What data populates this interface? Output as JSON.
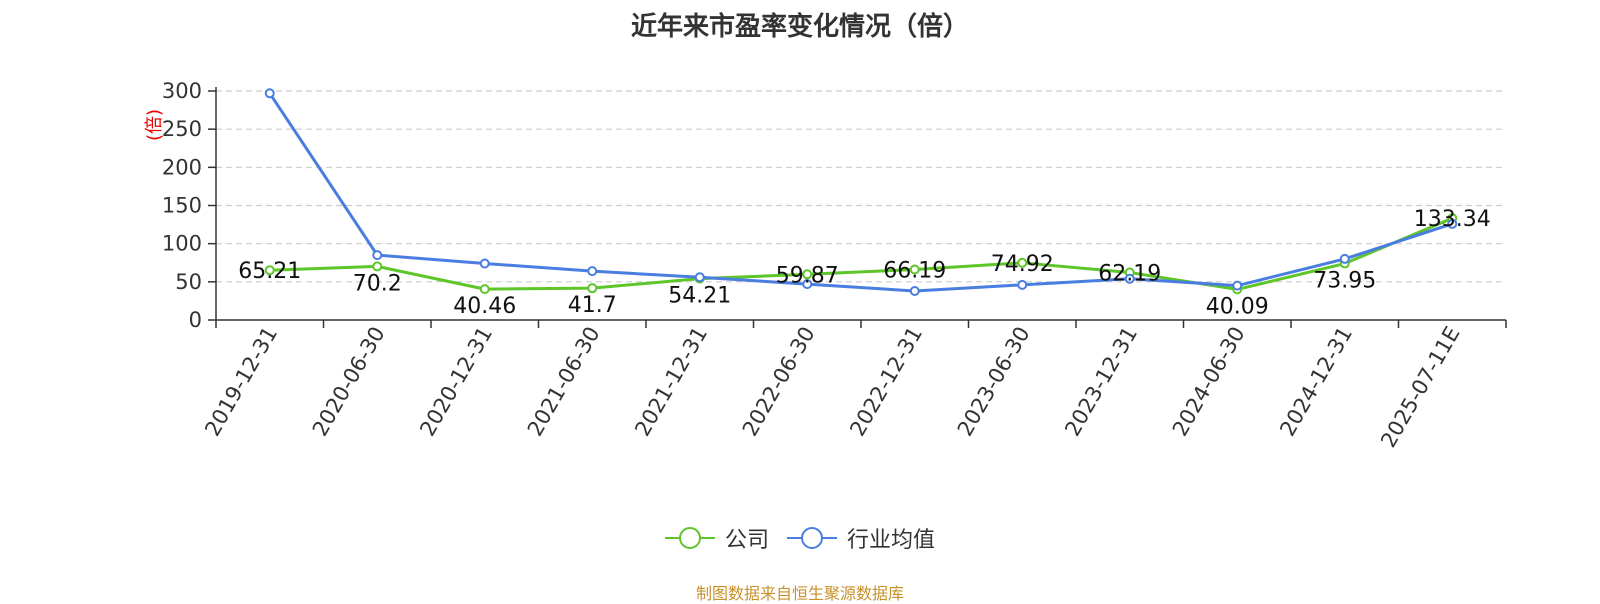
{
  "title": "近年来市盈率变化情况（倍）",
  "source": "制图数据来自恒生聚源数据库",
  "chart_data": {
    "type": "line",
    "title": "近年来市盈率变化情况（倍）",
    "ylabel": "(倍)",
    "xlabel": "",
    "ylim": [
      0,
      300
    ],
    "yticks": [
      0,
      50,
      100,
      150,
      200,
      250,
      300
    ],
    "grid": true,
    "legend_position": "bottom",
    "categories": [
      "2019-12-31",
      "2020-06-30",
      "2020-12-31",
      "2021-06-30",
      "2021-12-31",
      "2022-06-30",
      "2022-12-31",
      "2023-06-30",
      "2023-12-31",
      "2024-06-30",
      "2024-12-31",
      "2025-07-11E"
    ],
    "series": [
      {
        "name": "公司",
        "color": "#5ec52a",
        "values": [
          65.21,
          70.2,
          40.46,
          41.7,
          54.21,
          59.87,
          66.19,
          74.92,
          62.19,
          40.09,
          73.95,
          133.34
        ],
        "labels": [
          "65.21",
          "70.2",
          "40.46",
          "41.7",
          "54.21",
          "59.87",
          "66.19",
          "74.92",
          "62.19",
          "40.09",
          "73.95",
          "133.34"
        ]
      },
      {
        "name": "行业均值",
        "color": "#4a7de0",
        "values": [
          297,
          85,
          74,
          64,
          56,
          47,
          38,
          46,
          54,
          45,
          80,
          126
        ]
      }
    ]
  }
}
